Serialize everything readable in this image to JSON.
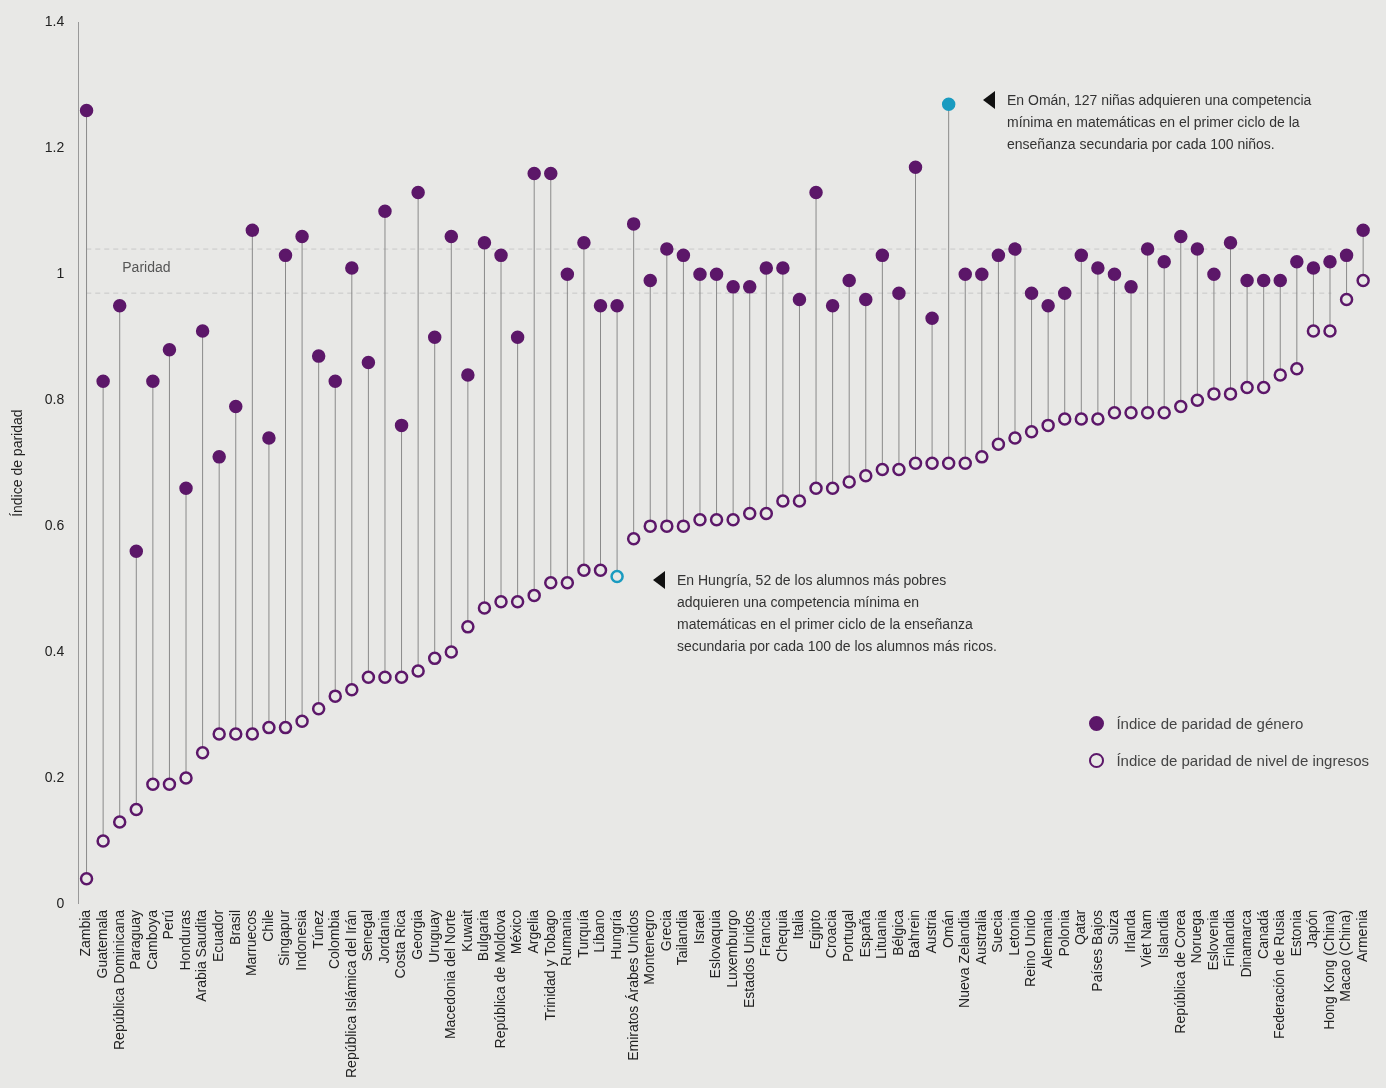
{
  "chart_data": {
    "type": "scatter",
    "ylabel": "Índice de paridad",
    "categories": [
      "Zambia",
      "Guatemala",
      "República Dominicana",
      "Paraguay",
      "Camboya",
      "Perú",
      "Honduras",
      "Arabia Saudita",
      "Ecuador",
      "Brasil",
      "Marruecos",
      "Chile",
      "Singapur",
      "Indonesia",
      "Túnez",
      "Colombia",
      "República Islámica del Irán",
      "Senegal",
      "Jordania",
      "Costa Rica",
      "Georgia",
      "Uruguay",
      "Macedonia del Norte",
      "Kuwait",
      "Bulgaria",
      "República de Moldova",
      "México",
      "Argelia",
      "Trinidad y Tobago",
      "Rumania",
      "Turquía",
      "Líbano",
      "Hungría",
      "Emiratos Árabes Unidos",
      "Montenegro",
      "Grecia",
      "Tailandia",
      "Israel",
      "Eslovaquia",
      "Luxemburgo",
      "Estados Unidos",
      "Francia",
      "Chequia",
      "Italia",
      "Egipto",
      "Croacia",
      "Portugal",
      "España",
      "Lituania",
      "Bélgica",
      "Bahrein",
      "Austria",
      "Omán",
      "Nueva Zelandia",
      "Australia",
      "Suecia",
      "Letonia",
      "Reino Unido",
      "Alemania",
      "Polonia",
      "Qatar",
      "Países Bajos",
      "Suiza",
      "Irlanda",
      "Viet Nam",
      "Islandia",
      "República de Corea",
      "Noruega",
      "Eslovenia",
      "Finlandia",
      "Dinamarca",
      "Canadá",
      "Federación de Rusia",
      "Estonia",
      "Japón",
      "Hong Kong (China)",
      "Macao (China)",
      "Armenia"
    ],
    "series": [
      {
        "name": "Índice de paridad de género",
        "type": "scatter",
        "color": "#5c1769",
        "colors": [
          "#5c1769",
          "#5c1769",
          "#5c1769",
          "#5c1769",
          "#5c1769",
          "#5c1769",
          "#5c1769",
          "#5c1769",
          "#5c1769",
          "#5c1769",
          "#5c1769",
          "#5c1769",
          "#5c1769",
          "#5c1769",
          "#5c1769",
          "#5c1769",
          "#5c1769",
          "#5c1769",
          "#5c1769",
          "#5c1769",
          "#5c1769",
          "#5c1769",
          "#5c1769",
          "#5c1769",
          "#5c1769",
          "#5c1769",
          "#5c1769",
          "#5c1769",
          "#5c1769",
          "#5c1769",
          "#5c1769",
          "#5c1769",
          "#5c1769",
          "#5c1769",
          "#5c1769",
          "#5c1769",
          "#5c1769",
          "#5c1769",
          "#5c1769",
          "#5c1769",
          "#5c1769",
          "#5c1769",
          "#5c1769",
          "#5c1769",
          "#5c1769",
          "#5c1769",
          "#5c1769",
          "#5c1769",
          "#5c1769",
          "#5c1769",
          "#5c1769",
          "#5c1769",
          "#1a9bc0",
          "#5c1769",
          "#5c1769",
          "#5c1769",
          "#5c1769",
          "#5c1769",
          "#5c1769",
          "#5c1769",
          "#5c1769",
          "#5c1769",
          "#5c1769",
          "#5c1769",
          "#5c1769",
          "#5c1769",
          "#5c1769",
          "#5c1769",
          "#5c1769",
          "#5c1769",
          "#5c1769",
          "#5c1769",
          "#5c1769",
          "#5c1769",
          "#5c1769",
          "#5c1769",
          "#5c1769",
          "#5c1769"
        ],
        "values": [
          1.26,
          0.83,
          0.95,
          0.56,
          0.83,
          0.88,
          0.66,
          0.91,
          0.71,
          0.79,
          1.07,
          0.74,
          1.03,
          1.06,
          0.87,
          0.83,
          1.01,
          0.86,
          1.1,
          0.76,
          1.13,
          0.9,
          1.06,
          0.84,
          1.05,
          1.03,
          0.9,
          1.16,
          1.16,
          1.0,
          1.05,
          0.95,
          0.95,
          1.08,
          0.99,
          1.04,
          1.03,
          1.0,
          1.0,
          0.98,
          0.98,
          1.01,
          1.01,
          0.96,
          1.13,
          0.95,
          0.99,
          0.96,
          1.03,
          0.97,
          1.17,
          0.93,
          1.27,
          1.0,
          1.0,
          1.03,
          1.04,
          0.97,
          0.95,
          0.97,
          1.03,
          1.01,
          1.0,
          0.98,
          1.04,
          1.02,
          1.06,
          1.04,
          1.0,
          1.05,
          0.99,
          0.99,
          0.99,
          1.02,
          1.01,
          1.02,
          1.03,
          1.07
        ]
      },
      {
        "name": "Índice de paridad de nivel de ingresos",
        "type": "scatter",
        "color": "#5c1769",
        "colors": [
          "#5c1769",
          "#5c1769",
          "#5c1769",
          "#5c1769",
          "#5c1769",
          "#5c1769",
          "#5c1769",
          "#5c1769",
          "#5c1769",
          "#5c1769",
          "#5c1769",
          "#5c1769",
          "#5c1769",
          "#5c1769",
          "#5c1769",
          "#5c1769",
          "#5c1769",
          "#5c1769",
          "#5c1769",
          "#5c1769",
          "#5c1769",
          "#5c1769",
          "#5c1769",
          "#5c1769",
          "#5c1769",
          "#5c1769",
          "#5c1769",
          "#5c1769",
          "#5c1769",
          "#5c1769",
          "#5c1769",
          "#5c1769",
          "#1a9bc0",
          "#5c1769",
          "#5c1769",
          "#5c1769",
          "#5c1769",
          "#5c1769",
          "#5c1769",
          "#5c1769",
          "#5c1769",
          "#5c1769",
          "#5c1769",
          "#5c1769",
          "#5c1769",
          "#5c1769",
          "#5c1769",
          "#5c1769",
          "#5c1769",
          "#5c1769",
          "#5c1769",
          "#5c1769",
          "#5c1769",
          "#5c1769",
          "#5c1769",
          "#5c1769",
          "#5c1769",
          "#5c1769",
          "#5c1769",
          "#5c1769",
          "#5c1769",
          "#5c1769",
          "#5c1769",
          "#5c1769",
          "#5c1769",
          "#5c1769",
          "#5c1769",
          "#5c1769",
          "#5c1769",
          "#5c1769",
          "#5c1769",
          "#5c1769",
          "#5c1769",
          "#5c1769",
          "#5c1769",
          "#5c1769",
          "#5c1769",
          "#5c1769"
        ],
        "values": [
          0.04,
          0.1,
          0.13,
          0.15,
          0.19,
          0.19,
          0.2,
          0.24,
          0.27,
          0.27,
          0.27,
          0.28,
          0.28,
          0.29,
          0.31,
          0.33,
          0.34,
          0.36,
          0.36,
          0.36,
          0.37,
          0.39,
          0.4,
          0.44,
          0.47,
          0.48,
          0.48,
          0.49,
          0.51,
          0.51,
          0.53,
          0.53,
          0.52,
          0.58,
          0.6,
          0.6,
          0.6,
          0.61,
          0.61,
          0.61,
          0.62,
          0.62,
          0.64,
          0.64,
          0.66,
          0.66,
          0.67,
          0.68,
          0.69,
          0.69,
          0.7,
          0.7,
          0.7,
          0.7,
          0.71,
          0.73,
          0.74,
          0.75,
          0.76,
          0.77,
          0.77,
          0.77,
          0.78,
          0.78,
          0.78,
          0.78,
          0.79,
          0.8,
          0.81,
          0.81,
          0.82,
          0.82,
          0.84,
          0.85,
          0.91,
          0.91,
          0.96,
          0.99
        ]
      }
    ],
    "ylim": [
      0,
      1.4
    ],
    "yticks": [
      0,
      0.2,
      0.4,
      0.6,
      0.8,
      1,
      1.2,
      1.4
    ],
    "grid": false,
    "legend": "bottom right",
    "marker": "circle",
    "ref_lines": [
      {
        "axis": "y",
        "value": 1.04,
        "label": "Paridad",
        "line_style": "dashed",
        "color": "#c8c8c8"
      },
      {
        "axis": "y",
        "value": 0.97,
        "line_style": "dashed",
        "color": "#c8c8c8"
      }
    ],
    "annotations": [
      "En Omán, 127 niñas adquieren una competencia mínima en matemáticas en el primer ciclo de la enseñanza secundaria por cada 100 niños.",
      "En Hungría, 52 de los alumnos más pobres adquieren una competencia mínima en matemáticas en el primer ciclo de la enseñanza secundaria por cada 100 de los alumnos más ricos."
    ]
  }
}
